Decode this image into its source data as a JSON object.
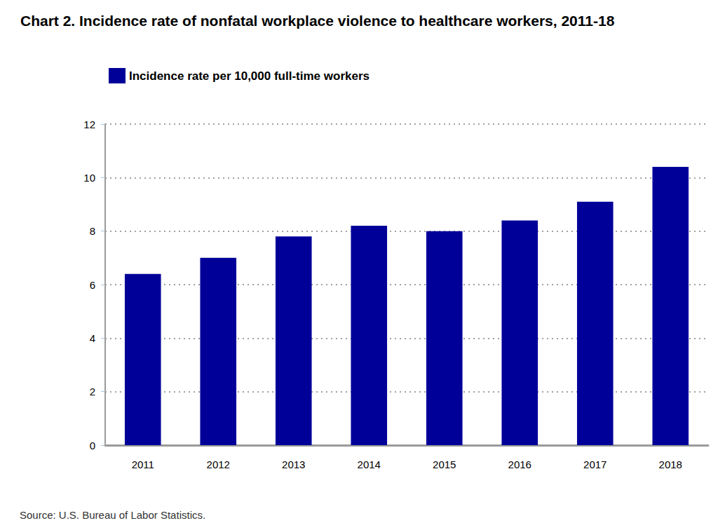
{
  "chart_data": {
    "type": "bar",
    "title": "Chart 2. Incidence rate of nonfatal workplace violence to healthcare workers, 2011-18",
    "categories": [
      "2011",
      "2012",
      "2013",
      "2014",
      "2015",
      "2016",
      "2017",
      "2018"
    ],
    "series": [
      {
        "name": "Incidence rate per 10,000 full-time workers",
        "color": "#000099",
        "values": [
          6.4,
          7.0,
          7.8,
          8.2,
          8.0,
          8.4,
          9.1,
          10.4
        ]
      }
    ],
    "ylim": [
      0,
      12
    ],
    "yticks": [
      0,
      2,
      4,
      6,
      8,
      10,
      12
    ],
    "grid": true,
    "legend": "top-left",
    "annotations": [
      "Source: U.S. Bureau of Labor Statistics."
    ]
  }
}
